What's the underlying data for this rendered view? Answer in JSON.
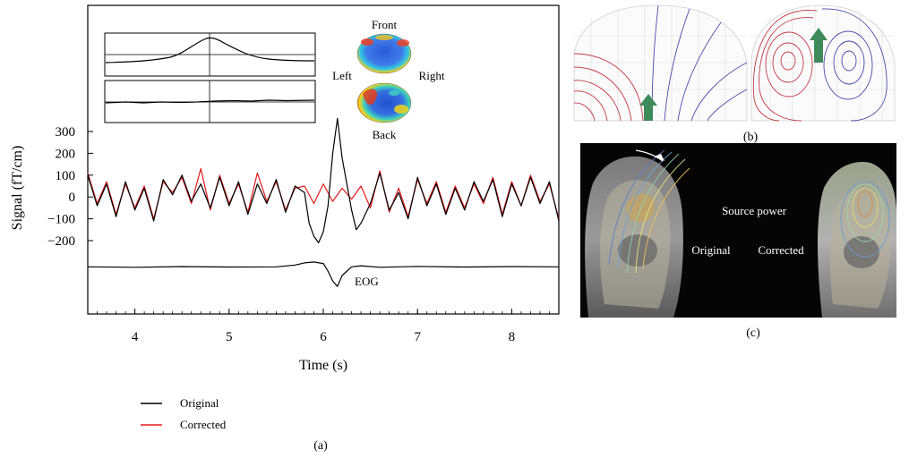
{
  "chart_data": {
    "type": "line",
    "panel_label": "(a)",
    "xlabel": "Time (s)",
    "ylabel": "Signal (fT/cm)",
    "xlim": [
      3.5,
      8.5
    ],
    "ylim": [
      -200,
      300
    ],
    "x_ticks": [
      4,
      5,
      6,
      7,
      8
    ],
    "x_tick_labels": [
      "4",
      "5",
      "6",
      "7",
      "8"
    ],
    "y_ticks": [
      300,
      200,
      100,
      0,
      -100,
      -200
    ],
    "y_tick_labels": [
      "300",
      "200",
      "100",
      "0",
      "−100",
      "−200"
    ],
    "grid": false,
    "legend_position": "below",
    "series": [
      {
        "name": "Original",
        "color": "#000000",
        "x": [
          3.5,
          3.6,
          3.7,
          3.8,
          3.9,
          4.0,
          4.1,
          4.2,
          4.3,
          4.4,
          4.5,
          4.6,
          4.7,
          4.8,
          4.9,
          5.0,
          5.1,
          5.2,
          5.3,
          5.4,
          5.5,
          5.6,
          5.7,
          5.8,
          5.85,
          5.9,
          5.95,
          6.0,
          6.05,
          6.1,
          6.15,
          6.2,
          6.25,
          6.3,
          6.35,
          6.4,
          6.5,
          6.6,
          6.7,
          6.8,
          6.9,
          7.0,
          7.1,
          7.2,
          7.3,
          7.4,
          7.5,
          7.6,
          7.7,
          7.8,
          7.9,
          8.0,
          8.1,
          8.2,
          8.3,
          8.4,
          8.5
        ],
        "y": [
          100,
          -40,
          60,
          -90,
          70,
          -60,
          40,
          -110,
          80,
          10,
          100,
          -20,
          60,
          -50,
          90,
          -40,
          70,
          -80,
          60,
          -30,
          80,
          -70,
          50,
          20,
          -120,
          -180,
          -210,
          -160,
          -40,
          200,
          360,
          180,
          60,
          -60,
          -150,
          -120,
          -30,
          110,
          -60,
          20,
          -100,
          90,
          -40,
          60,
          -80,
          40,
          -60,
          70,
          -20,
          80,
          -90,
          60,
          -40,
          90,
          -30,
          70,
          -110
        ],
        "label": "Original"
      },
      {
        "name": "Corrected",
        "color": "#e31a1c",
        "x": [
          3.5,
          3.6,
          3.7,
          3.8,
          3.9,
          4.0,
          4.1,
          4.2,
          4.3,
          4.4,
          4.5,
          4.6,
          4.7,
          4.8,
          4.9,
          5.0,
          5.1,
          5.2,
          5.3,
          5.4,
          5.5,
          5.6,
          5.7,
          5.8,
          5.9,
          6.0,
          6.1,
          6.2,
          6.3,
          6.4,
          6.5,
          6.6,
          6.7,
          6.8,
          6.9,
          7.0,
          7.1,
          7.2,
          7.3,
          7.4,
          7.5,
          7.6,
          7.7,
          7.8,
          7.9,
          8.0,
          8.1,
          8.2,
          8.3,
          8.4,
          8.5
        ],
        "y": [
          110,
          -30,
          70,
          -80,
          60,
          -50,
          50,
          -100,
          70,
          20,
          90,
          -30,
          130,
          -60,
          100,
          -30,
          60,
          -70,
          110,
          -20,
          70,
          -60,
          40,
          50,
          -30,
          60,
          -20,
          40,
          -10,
          50,
          -50,
          120,
          -70,
          40,
          -90,
          80,
          -30,
          70,
          -70,
          50,
          -50,
          60,
          -30,
          90,
          -80,
          70,
          -40,
          100,
          -20,
          60,
          -100
        ],
        "label": "Corrected"
      },
      {
        "name": "EOG",
        "color": "#000000",
        "x": [
          3.5,
          4.0,
          4.5,
          5.0,
          5.5,
          5.7,
          5.8,
          5.9,
          6.0,
          6.05,
          6.1,
          6.15,
          6.2,
          6.3,
          6.4,
          6.6,
          7.0,
          7.5,
          8.0,
          8.5
        ],
        "y": [
          -320,
          -322,
          -319,
          -321,
          -320,
          -312,
          -302,
          -298,
          -305,
          -340,
          -385,
          -410,
          -360,
          -320,
          -315,
          -322,
          -318,
          -321,
          -319,
          -320
        ],
        "label": "EOG"
      }
    ],
    "annotations": [
      "EOG"
    ],
    "legend": [
      "Original",
      "Corrected"
    ]
  },
  "inset": {
    "topomap_labels": {
      "front": "Front",
      "back": "Back",
      "left": "Left",
      "right": "Right"
    }
  },
  "panel_b": {
    "label": "(b)"
  },
  "panel_c": {
    "label": "(c)",
    "title": "Source power",
    "original_label": "Original",
    "corrected_label": "Corrected"
  }
}
